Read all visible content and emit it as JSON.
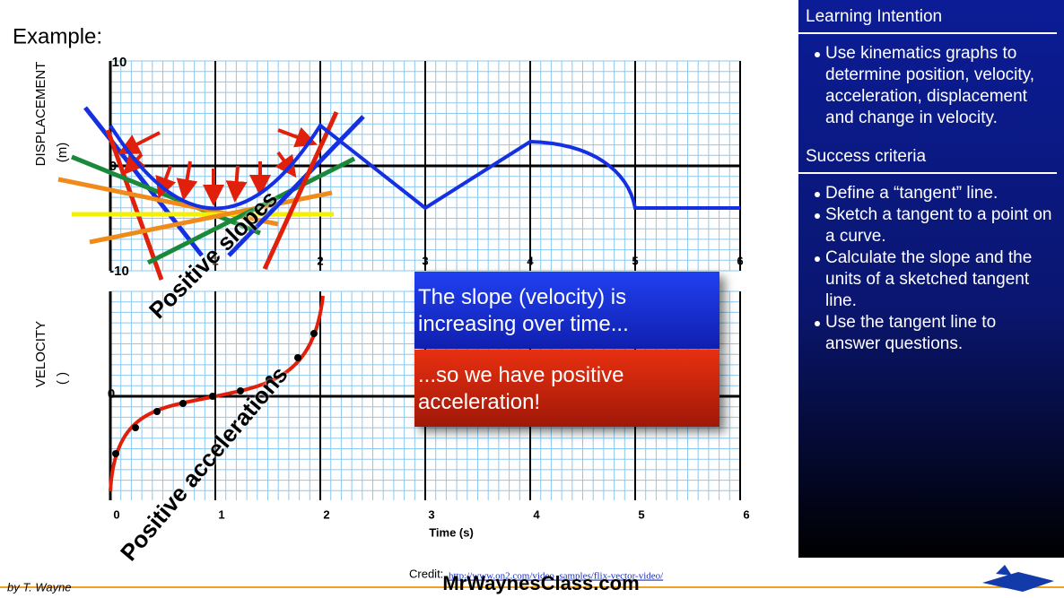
{
  "slide": {
    "title": "Example:",
    "displacement_graph": {
      "y_label": "DISPLACEMENT",
      "y_unit": "(m)",
      "y_ticks": [
        10,
        0,
        -10
      ],
      "x_ticks": [
        1,
        2,
        3,
        4,
        5,
        6
      ]
    },
    "velocity_graph": {
      "y_label": "VELOCITY",
      "y_unit": "(   )",
      "y_ticks": [
        0
      ],
      "x_ticks": [
        0,
        1,
        2,
        3,
        4,
        5,
        6
      ],
      "x_label": "Time (s)"
    },
    "annotations": [
      "Positive slopes",
      "Positive accelerations"
    ],
    "callouts": [
      "The slope (velocity) is increasing over time...",
      "...so we have positive acceleration!"
    ],
    "sidebar": {
      "learning_intention": {
        "heading": "Learning Intention",
        "items": [
          "Use kinematics graphs to determine position, velocity, acceleration, displacement and change in velocity."
        ]
      },
      "success_criteria": {
        "heading": "Success criteria",
        "items": [
          "Define a “tangent” line.",
          "Sketch a tangent to a point on a curve.",
          "Calculate the slope and the units of a sketched tangent line.",
          "Use the tangent line to answer questions."
        ]
      }
    },
    "footer": {
      "author": "by T. Wayne",
      "credit": "Credit:",
      "credit_url": "http://www.on2.com/video_samples/flix-vector-video/",
      "site": "MrWaynesClass.com"
    }
  }
}
